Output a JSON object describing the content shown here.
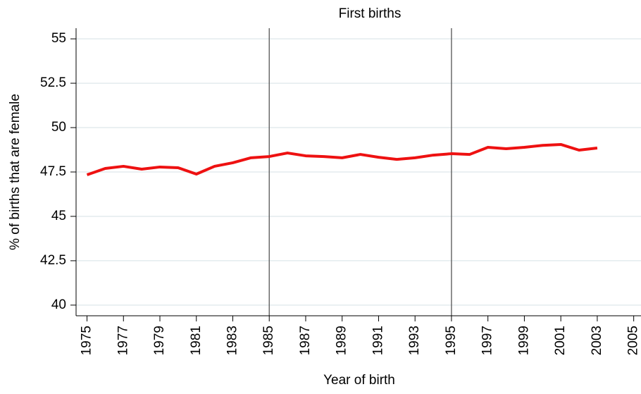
{
  "chart_data": {
    "type": "line",
    "title": "First births",
    "x_label": "Year of birth",
    "y_label": "% of births that are female",
    "x": [
      1975,
      1976,
      1977,
      1978,
      1979,
      1980,
      1981,
      1982,
      1983,
      1984,
      1985,
      1986,
      1987,
      1988,
      1989,
      1990,
      1991,
      1992,
      1993,
      1994,
      1995,
      1996,
      1997,
      1998,
      1999,
      2000,
      2001,
      2002,
      2003
    ],
    "values": [
      47.34,
      47.7,
      47.82,
      47.66,
      47.78,
      47.74,
      47.38,
      47.82,
      48.02,
      48.3,
      48.37,
      48.57,
      48.41,
      48.37,
      48.3,
      48.49,
      48.33,
      48.21,
      48.3,
      48.45,
      48.53,
      48.49,
      48.89,
      48.81,
      48.89,
      49.0,
      49.05,
      48.73,
      48.85
    ],
    "color": "#ee1111",
    "xlim": [
      1974.4,
      2005.4
    ],
    "xticks": [
      1975,
      1977,
      1979,
      1981,
      1983,
      1985,
      1987,
      1989,
      1991,
      1993,
      1995,
      1997,
      1999,
      2001,
      2003,
      2005
    ],
    "ylim": [
      39.4,
      55.6
    ],
    "yticks": [
      40,
      42.5,
      45,
      47.5,
      50,
      52.5,
      55
    ],
    "grid": true,
    "vlines": [
      1985,
      1995
    ]
  }
}
